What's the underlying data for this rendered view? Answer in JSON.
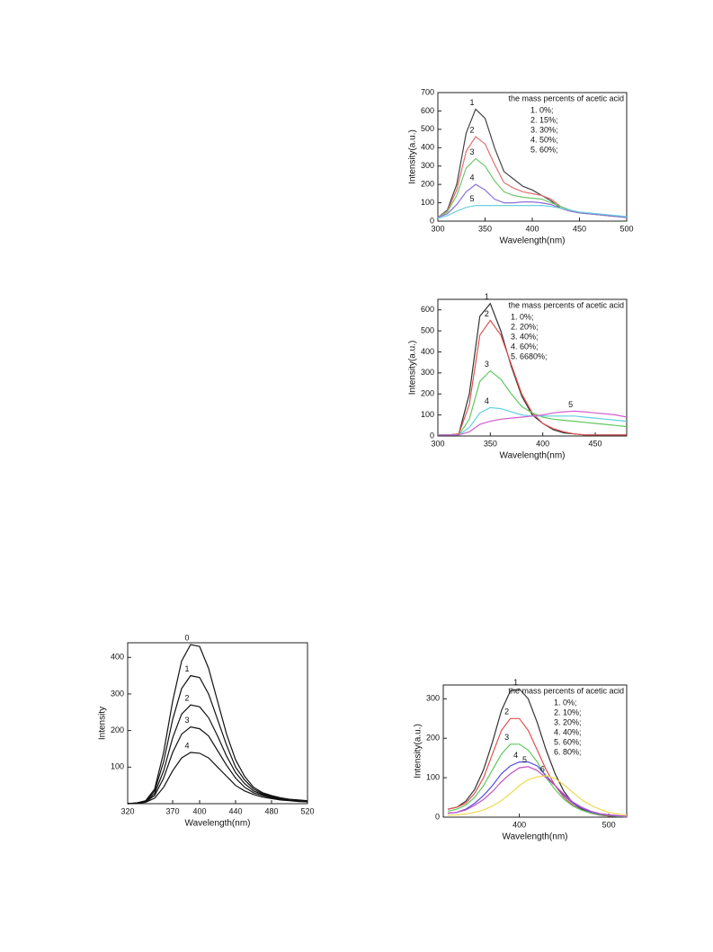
{
  "chart_data": [
    {
      "type": "line",
      "x_label": "Wavelength(nm)",
      "y_label": "Intensity(a.u.)",
      "legend_title": "the mass percents of acetic acid",
      "xlim": [
        300,
        500
      ],
      "xticks": [
        300,
        350,
        400,
        450,
        500
      ],
      "ylim": [
        0,
        700
      ],
      "yticks": [
        0,
        100,
        200,
        300,
        400,
        500,
        600,
        700
      ],
      "x": [
        300,
        310,
        320,
        330,
        340,
        350,
        360,
        370,
        380,
        390,
        400,
        410,
        420,
        430,
        440,
        450,
        460,
        470,
        480,
        490,
        500
      ],
      "series": [
        {
          "name": "1. 0%;",
          "label": "1",
          "color": "#444444",
          "values": [
            20,
            60,
            200,
            480,
            610,
            560,
            400,
            270,
            230,
            190,
            170,
            140,
            110,
            70,
            55,
            45,
            40,
            35,
            30,
            25,
            20
          ]
        },
        {
          "name": "2. 15%;",
          "label": "2",
          "color": "#e07070",
          "values": [
            20,
            55,
            170,
            380,
            460,
            420,
            310,
            210,
            180,
            160,
            150,
            140,
            120,
            80,
            60,
            45,
            40,
            35,
            30,
            25,
            20
          ]
        },
        {
          "name": "3. 30%;",
          "label": "3",
          "color": "#70c870",
          "values": [
            20,
            50,
            140,
            290,
            340,
            300,
            220,
            160,
            140,
            130,
            125,
            120,
            100,
            80,
            60,
            45,
            40,
            35,
            30,
            25,
            20
          ]
        },
        {
          "name": "4. 50%;",
          "label": "4",
          "color": "#8a70d8",
          "values": [
            20,
            40,
            90,
            160,
            200,
            170,
            120,
            100,
            100,
            105,
            105,
            100,
            90,
            70,
            55,
            45,
            40,
            35,
            30,
            25,
            20
          ]
        },
        {
          "name": "5. 60%;",
          "label": "5",
          "color": "#70d0e0",
          "values": [
            15,
            30,
            55,
            75,
            85,
            85,
            85,
            85,
            85,
            85,
            85,
            85,
            80,
            70,
            60,
            50,
            45,
            40,
            35,
            30,
            25
          ]
        }
      ]
    },
    {
      "type": "line",
      "x_label": "Wavelength(nm)",
      "y_label": "Intensity(a.u.)",
      "legend_title": "the mass percents of acetic acid",
      "xlim": [
        300,
        480
      ],
      "xticks": [
        300,
        350,
        400,
        450
      ],
      "ylim": [
        0,
        650
      ],
      "yticks": [
        0,
        100,
        200,
        300,
        400,
        500,
        600
      ],
      "x": [
        300,
        310,
        320,
        330,
        340,
        350,
        360,
        370,
        380,
        390,
        400,
        410,
        420,
        430,
        440,
        450,
        460,
        470,
        480
      ],
      "series": [
        {
          "name": "1. 0%;",
          "label": "1",
          "color": "#333333",
          "values": [
            5,
            5,
            10,
            200,
            570,
            630,
            500,
            330,
            190,
            100,
            60,
            30,
            15,
            10,
            5,
            5,
            5,
            5,
            5
          ]
        },
        {
          "name": "2. 20%;",
          "label": "2",
          "color": "#e05050",
          "values": [
            5,
            5,
            10,
            150,
            480,
            550,
            480,
            340,
            200,
            110,
            60,
            35,
            20,
            10,
            5,
            5,
            5,
            5,
            5
          ]
        },
        {
          "name": "3. 40%;",
          "label": "3",
          "color": "#60c860",
          "values": [
            5,
            5,
            5,
            80,
            260,
            310,
            270,
            200,
            140,
            110,
            90,
            80,
            75,
            70,
            65,
            60,
            55,
            50,
            45
          ]
        },
        {
          "name": "4. 60%;",
          "label": "4",
          "color": "#60d0e0",
          "values": [
            5,
            5,
            5,
            40,
            110,
            135,
            130,
            115,
            100,
            95,
            95,
            95,
            95,
            95,
            90,
            85,
            80,
            75,
            70
          ]
        },
        {
          "name": "5. 6680%;",
          "label": "5",
          "color": "#d060d0",
          "values": [
            5,
            5,
            5,
            20,
            55,
            70,
            80,
            85,
            90,
            95,
            100,
            110,
            115,
            118,
            115,
            110,
            105,
            100,
            90
          ]
        }
      ]
    },
    {
      "type": "line",
      "x_label": "Wavelength(nm)",
      "y_label": "Intensity",
      "xlim": [
        320,
        520
      ],
      "xticks": [
        320,
        370,
        400,
        440,
        480,
        520
      ],
      "ylim": [
        0,
        440
      ],
      "yticks": [
        100,
        200,
        300,
        400
      ],
      "x": [
        320,
        330,
        340,
        350,
        360,
        370,
        380,
        390,
        400,
        410,
        420,
        430,
        440,
        450,
        460,
        470,
        480,
        490,
        500,
        510,
        520
      ],
      "series": [
        {
          "label": "0",
          "color": "#111111",
          "values": [
            0,
            2,
            8,
            40,
            140,
            280,
            390,
            435,
            430,
            370,
            280,
            190,
            120,
            75,
            45,
            30,
            22,
            16,
            12,
            10,
            8
          ]
        },
        {
          "label": "1",
          "color": "#111111",
          "values": [
            0,
            2,
            7,
            35,
            115,
            230,
            315,
            350,
            345,
            300,
            230,
            160,
            100,
            65,
            40,
            27,
            20,
            15,
            11,
            9,
            7
          ]
        },
        {
          "label": "2",
          "color": "#111111",
          "values": [
            0,
            2,
            6,
            28,
            90,
            180,
            245,
            270,
            265,
            235,
            185,
            130,
            85,
            55,
            35,
            25,
            18,
            14,
            10,
            8,
            6
          ]
        },
        {
          "label": "3",
          "color": "#111111",
          "values": [
            0,
            1,
            5,
            22,
            70,
            140,
            190,
            210,
            205,
            185,
            145,
            105,
            70,
            45,
            30,
            22,
            16,
            12,
            9,
            7,
            6
          ]
        },
        {
          "label": "4",
          "color": "#111111",
          "values": [
            0,
            1,
            4,
            15,
            45,
            90,
            125,
            140,
            138,
            125,
            100,
            75,
            50,
            35,
            25,
            18,
            14,
            10,
            8,
            6,
            5
          ]
        }
      ]
    },
    {
      "type": "line",
      "x_label": "Wavelength(nm)",
      "y_label": "Intensity(a.u.)",
      "legend_title": "the mass percents of acetic acid",
      "xlim": [
        315,
        520
      ],
      "xticks": [
        400,
        500
      ],
      "ylim": [
        0,
        335
      ],
      "yticks": [
        0,
        100,
        200,
        300
      ],
      "x": [
        320,
        330,
        340,
        350,
        360,
        370,
        380,
        390,
        400,
        410,
        420,
        430,
        440,
        450,
        460,
        470,
        480,
        490,
        500,
        510,
        520
      ],
      "series": [
        {
          "name": "1. 0%;",
          "label": "1",
          "color": "#333333",
          "values": [
            20,
            25,
            40,
            70,
            120,
            190,
            270,
            320,
            325,
            300,
            240,
            170,
            110,
            65,
            35,
            20,
            10,
            5,
            3,
            2,
            1
          ]
        },
        {
          "name": "2. 10%;",
          "label": "2",
          "color": "#e05050",
          "values": [
            20,
            25,
            35,
            60,
            100,
            160,
            220,
            250,
            250,
            220,
            170,
            120,
            80,
            50,
            30,
            18,
            10,
            5,
            3,
            2,
            1
          ]
        },
        {
          "name": "3. 20%;",
          "label": "3",
          "color": "#60c860",
          "values": [
            15,
            20,
            30,
            50,
            80,
            120,
            160,
            185,
            185,
            170,
            140,
            100,
            70,
            45,
            28,
            17,
            10,
            6,
            4,
            2,
            1
          ]
        },
        {
          "name": "4. 40%;",
          "label": "4",
          "color": "#5050e0",
          "values": [
            10,
            12,
            20,
            35,
            55,
            80,
            110,
            130,
            140,
            140,
            130,
            105,
            80,
            55,
            35,
            22,
            13,
            8,
            5,
            3,
            2
          ]
        },
        {
          "name": "5. 60%;",
          "label": "5",
          "color": "#c050c0",
          "values": [
            10,
            12,
            18,
            30,
            45,
            65,
            90,
            110,
            125,
            128,
            118,
            100,
            80,
            58,
            38,
            25,
            15,
            9,
            6,
            4,
            2
          ]
        },
        {
          "name": "6. 80%;",
          "label": "6",
          "color": "#f0d850",
          "values": [
            5,
            6,
            8,
            12,
            18,
            28,
            42,
            60,
            80,
            95,
            102,
            105,
            98,
            82,
            62,
            44,
            30,
            20,
            12,
            8,
            5
          ]
        }
      ]
    }
  ]
}
